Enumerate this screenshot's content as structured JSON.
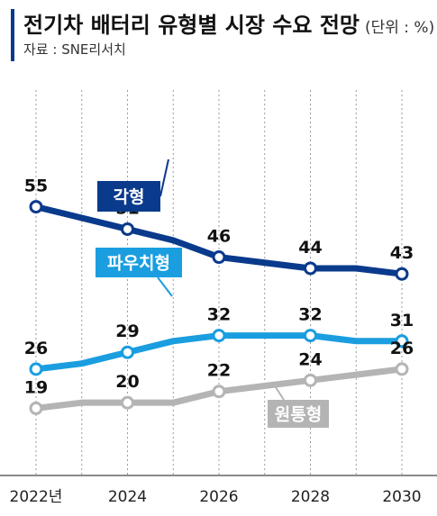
{
  "header": {
    "title": "전기차 배터리 유형별 시장 수요 전망",
    "unit": "(단위 : %)",
    "source": "자료 : SNE리서치"
  },
  "chart_data": {
    "type": "line",
    "x_labels": [
      "2022년",
      "2024",
      "2026",
      "2028",
      "2030"
    ],
    "ylim": [
      0,
      60
    ],
    "grid": "vertical dotted lines at labeled years",
    "series": [
      {
        "name": "각형",
        "color": "#0a3a8c",
        "x": [
          2022,
          2023,
          2024,
          2025,
          2026,
          2027,
          2028,
          2029,
          2030
        ],
        "y": [
          55,
          53,
          51,
          49,
          46,
          45,
          44,
          44,
          43
        ],
        "labels": [
          {
            "x": 2022,
            "text": "55"
          },
          {
            "x": 2024,
            "text": "51"
          },
          {
            "x": 2026,
            "text": "46"
          },
          {
            "x": 2028,
            "text": "44"
          },
          {
            "x": 2030,
            "text": "43"
          }
        ]
      },
      {
        "name": "파우치형",
        "color": "#1a9ee0",
        "x": [
          2022,
          2023,
          2024,
          2025,
          2026,
          2027,
          2028,
          2029,
          2030
        ],
        "y": [
          26,
          27,
          29,
          31,
          32,
          32,
          32,
          31,
          31
        ],
        "labels": [
          {
            "x": 2022,
            "text": "26"
          },
          {
            "x": 2024,
            "text": "29"
          },
          {
            "x": 2026,
            "text": "32"
          },
          {
            "x": 2028,
            "text": "32"
          },
          {
            "x": 2030,
            "text": "31"
          }
        ]
      },
      {
        "name": "원통형",
        "color": "#b4b4b4",
        "x": [
          2022,
          2023,
          2024,
          2025,
          2026,
          2027,
          2028,
          2029,
          2030
        ],
        "y": [
          19,
          20,
          20,
          20,
          22,
          23,
          24,
          25,
          26
        ],
        "labels": [
          {
            "x": 2022,
            "text": "19"
          },
          {
            "x": 2024,
            "text": "20"
          },
          {
            "x": 2026,
            "text": "22"
          },
          {
            "x": 2028,
            "text": "24"
          },
          {
            "x": 2030,
            "text": "26"
          }
        ]
      }
    ]
  }
}
